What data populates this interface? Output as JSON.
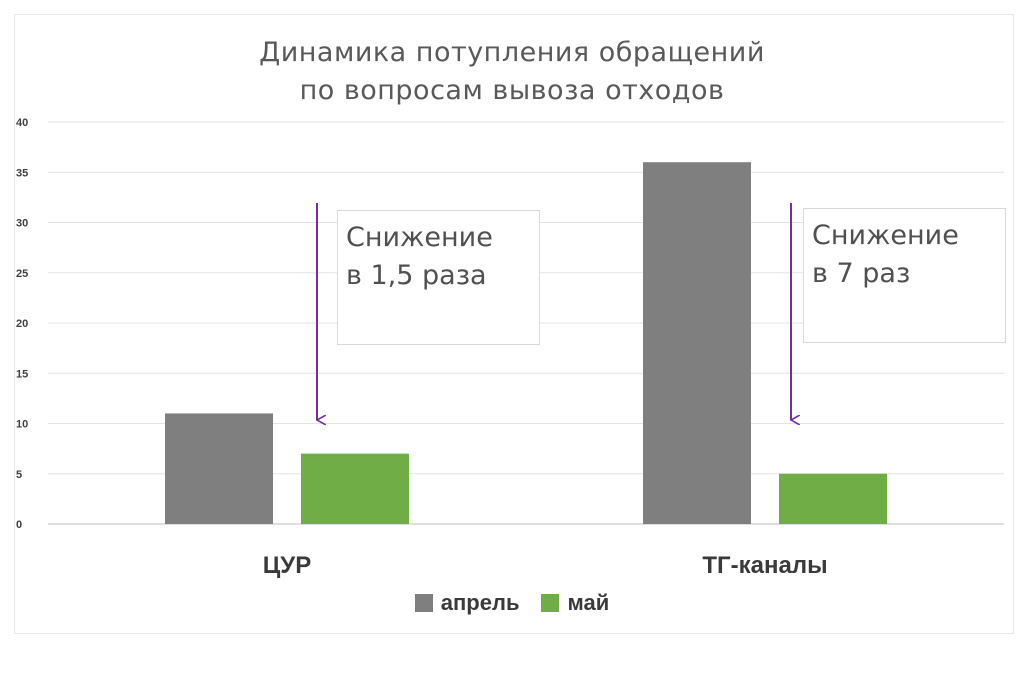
{
  "chart_data": {
    "type": "bar",
    "title": "Динамика потупления обращений\nпо вопросам вывоза отходов",
    "categories": [
      "ЦУР",
      "ТГ-каналы"
    ],
    "series": [
      {
        "name": "апрель",
        "color": "#7f7f7f",
        "values": [
          11,
          36
        ]
      },
      {
        "name": "май",
        "color": "#70ad47",
        "values": [
          7,
          5
        ]
      }
    ],
    "ylim": [
      0,
      40
    ],
    "yticks": [
      0,
      5,
      10,
      15,
      20,
      25,
      30,
      35,
      40
    ],
    "grid": true,
    "legend_position": "bottom"
  },
  "annotations": [
    {
      "text": "Снижение\nв 1,5 раза",
      "arrow_color": "#7030a0"
    },
    {
      "text": "Снижение\nв 7 раз",
      "arrow_color": "#7030a0"
    }
  ]
}
